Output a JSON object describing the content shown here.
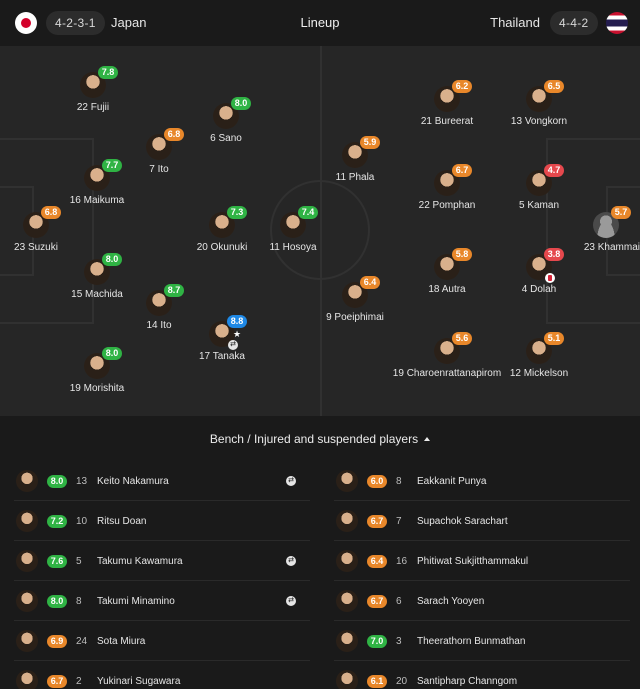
{
  "header": {
    "title": "Lineup",
    "home": {
      "name": "Japan",
      "formation": "4-2-3-1",
      "flag": "japan-flag-icon"
    },
    "away": {
      "name": "Thailand",
      "formation": "4-4-2",
      "flag": "thailand-flag-icon"
    }
  },
  "colors": {
    "green": "#2fb344",
    "orange": "#e8872a",
    "red": "#e5484d",
    "blue": "#1e88e5"
  },
  "pitch": {
    "home": [
      {
        "id": "h1",
        "number": "22",
        "name": "Fujii",
        "rating": "7.8",
        "tone": "green"
      },
      {
        "id": "h2",
        "number": "6",
        "name": "Sano",
        "rating": "8.0",
        "tone": "green"
      },
      {
        "id": "h3",
        "number": "7",
        "name": "Ito",
        "rating": "6.8",
        "tone": "orange"
      },
      {
        "id": "h4",
        "number": "16",
        "name": "Maikuma",
        "rating": "7.7",
        "tone": "green"
      },
      {
        "id": "h5",
        "number": "23",
        "name": "Suzuki",
        "rating": "6.8",
        "tone": "orange"
      },
      {
        "id": "h6",
        "number": "20",
        "name": "Okunuki",
        "rating": "7.3",
        "tone": "green"
      },
      {
        "id": "h7",
        "number": "11",
        "name": "Hosoya",
        "rating": "7.4",
        "tone": "green"
      },
      {
        "id": "h8",
        "number": "15",
        "name": "Machida",
        "rating": "8.0",
        "tone": "green"
      },
      {
        "id": "h9",
        "number": "14",
        "name": "Ito",
        "rating": "8.7",
        "tone": "green"
      },
      {
        "id": "h10",
        "number": "17",
        "name": "Tanaka",
        "rating": "8.8 ★",
        "tone": "blue",
        "sub": true
      },
      {
        "id": "h11",
        "number": "19",
        "name": "Morishita",
        "rating": "8.0",
        "tone": "green"
      }
    ],
    "away": [
      {
        "id": "a1",
        "number": "21",
        "name": "Bureerat",
        "rating": "6.2",
        "tone": "orange"
      },
      {
        "id": "a2",
        "number": "13",
        "name": "Vongkorn",
        "rating": "6.5",
        "tone": "orange"
      },
      {
        "id": "a3",
        "number": "11",
        "name": "Phala",
        "rating": "5.9",
        "tone": "orange"
      },
      {
        "id": "a4",
        "number": "22",
        "name": "Pomphan",
        "rating": "6.7",
        "tone": "orange"
      },
      {
        "id": "a5",
        "number": "5",
        "name": "Kaman",
        "rating": "4.7",
        "tone": "red"
      },
      {
        "id": "a6",
        "number": "23",
        "name": "Khammai",
        "rating": "5.7",
        "tone": "orange"
      },
      {
        "id": "a7",
        "number": "18",
        "name": "Autra",
        "rating": "5.8",
        "tone": "orange"
      },
      {
        "id": "a8",
        "number": "4",
        "name": "Dolah",
        "rating": "3.8",
        "tone": "red",
        "card": true
      },
      {
        "id": "a9",
        "number": "9",
        "name": "Poeiphimai",
        "rating": "6.4",
        "tone": "orange"
      },
      {
        "id": "a10",
        "number": "19",
        "name": "Charoenrattanapirom",
        "rating": "5.6",
        "tone": "orange"
      },
      {
        "id": "a11",
        "number": "12",
        "name": "Mickelson",
        "rating": "5.1",
        "tone": "orange"
      }
    ]
  },
  "bench": {
    "title": "Bench / Injured and suspended players",
    "home": [
      {
        "rating": "8.0",
        "tone": "green",
        "number": "13",
        "name": "Keito Nakamura",
        "sub": true
      },
      {
        "rating": "7.2",
        "tone": "green",
        "number": "10",
        "name": "Ritsu Doan",
        "sub": false
      },
      {
        "rating": "7.6",
        "tone": "green",
        "number": "5",
        "name": "Takumu Kawamura",
        "sub": true
      },
      {
        "rating": "8.0",
        "tone": "green",
        "number": "8",
        "name": "Takumi Minamino",
        "sub": true
      },
      {
        "rating": "6.9",
        "tone": "orange",
        "number": "24",
        "name": "Sota Miura",
        "sub": false
      },
      {
        "rating": "6.7",
        "tone": "orange",
        "number": "2",
        "name": "Yukinari Sugawara",
        "sub": false
      }
    ],
    "away": [
      {
        "rating": "6.0",
        "tone": "orange",
        "number": "8",
        "name": "Eakkanit Punya"
      },
      {
        "rating": "6.7",
        "tone": "orange",
        "number": "7",
        "name": "Supachok Sarachart"
      },
      {
        "rating": "6.4",
        "tone": "orange",
        "number": "16",
        "name": "Phitiwat Sukjitthammakul"
      },
      {
        "rating": "6.7",
        "tone": "orange",
        "number": "6",
        "name": "Sarach Yooyen"
      },
      {
        "rating": "7.0",
        "tone": "green",
        "number": "3",
        "name": "Theerathorn Bunmathan"
      },
      {
        "rating": "6.1",
        "tone": "orange",
        "number": "20",
        "name": "Santipharp Channgom"
      }
    ]
  }
}
